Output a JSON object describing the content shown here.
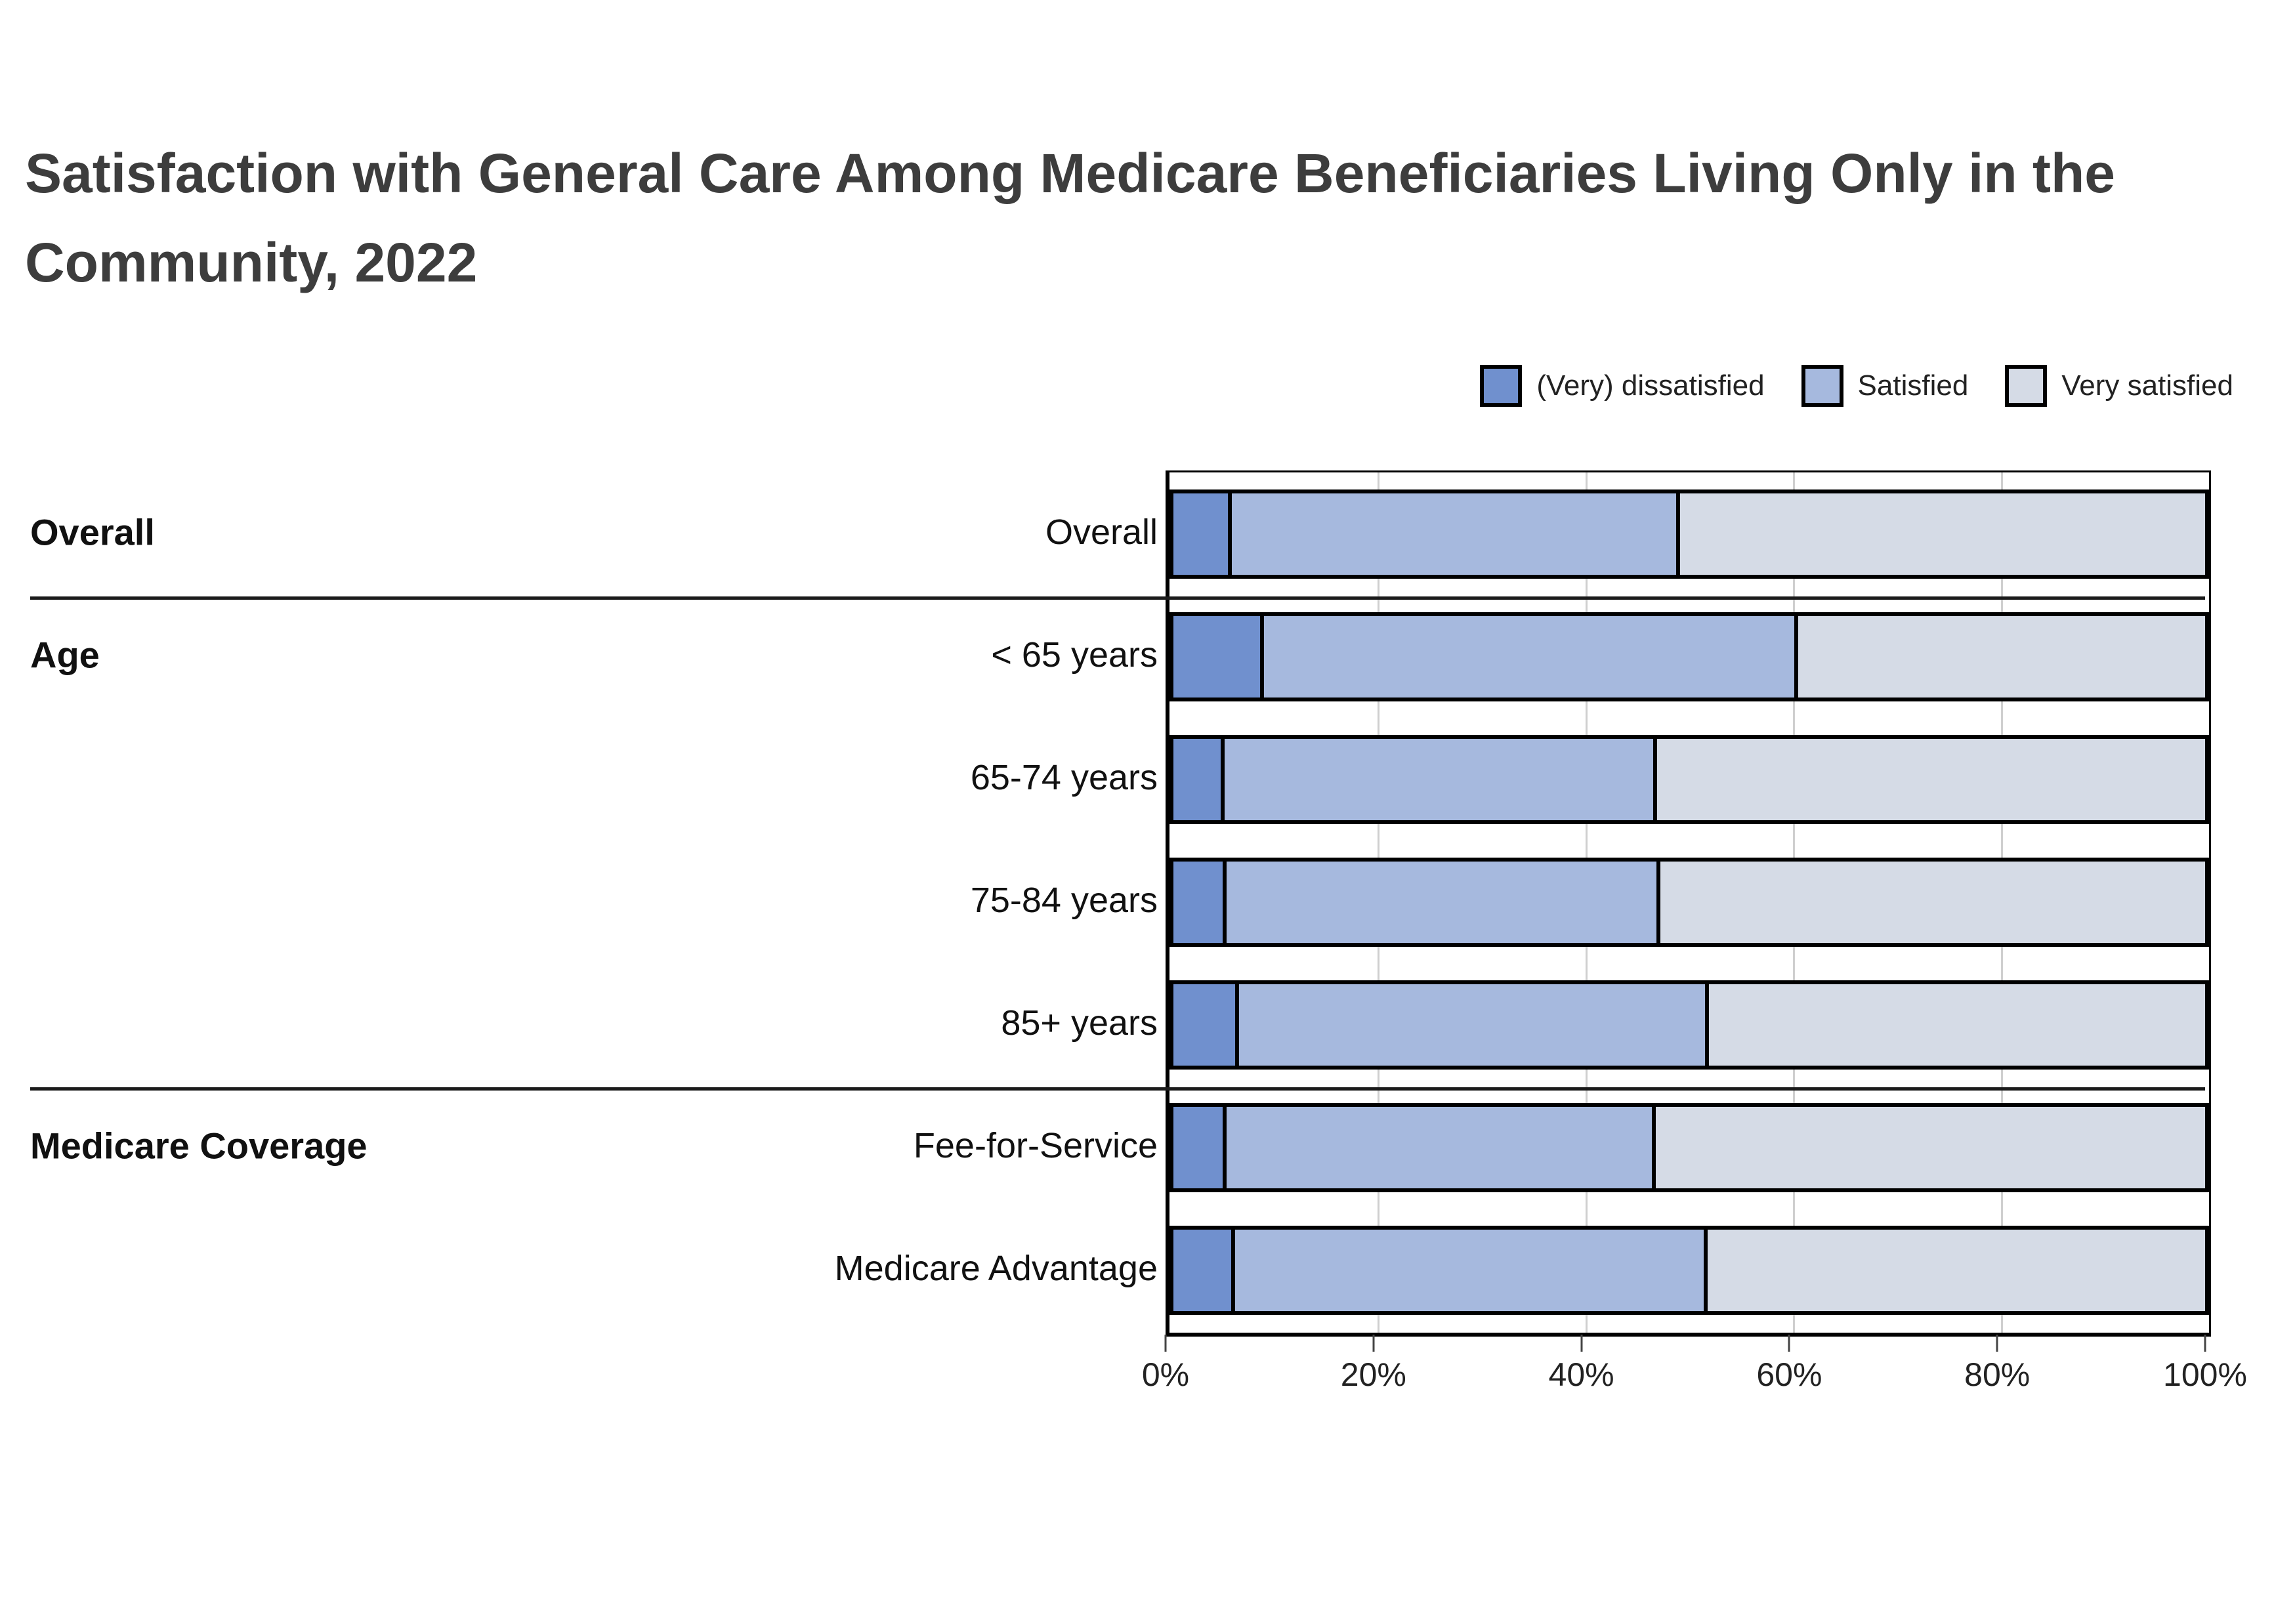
{
  "title": {
    "line1": "Satisfaction with General Care Among Medicare Beneficiaries Living Only in the",
    "line2": "Community, 2022"
  },
  "legend": {
    "items": [
      {
        "label": "(Very) dissatisfied",
        "color": "#7090ce"
      },
      {
        "label": "Satisfied",
        "color": "#a6b9de"
      },
      {
        "label": "Very satisfied",
        "color": "#d5dbe6"
      }
    ]
  },
  "chart_data": {
    "type": "bar",
    "stacked": true,
    "orientation": "horizontal",
    "title": "Satisfaction with General Care Among Medicare Beneficiaries Living Only in the Community, 2022",
    "x_unit": "percent",
    "xlim": [
      0,
      100
    ],
    "xticks": [
      0,
      20,
      40,
      60,
      80,
      100
    ],
    "xtick_labels": [
      "0%",
      "20%",
      "40%",
      "60%",
      "80%",
      "100%"
    ],
    "grid": "vertical gridlines at 20, 40, 60, 80",
    "legend_position": "top-right",
    "series_names": [
      "(Very) dissatisfied",
      "Satisfied",
      "Very satisfied"
    ],
    "groups": [
      {
        "label": "Overall",
        "rows": [
          {
            "label": "Overall",
            "values": [
              5.3,
              43.4,
              51.3
            ]
          }
        ]
      },
      {
        "label": "Age",
        "rows": [
          {
            "label": "< 65 years",
            "values": [
              8.4,
              51.8,
              39.8
            ]
          },
          {
            "label": "65-74 years",
            "values": [
              4.6,
              41.9,
              53.5
            ]
          },
          {
            "label": "75-84 years",
            "values": [
              4.8,
              42.0,
              53.2
            ]
          },
          {
            "label": "85+ years",
            "values": [
              6.0,
              45.5,
              48.5
            ]
          }
        ]
      },
      {
        "label": "Medicare Coverage",
        "rows": [
          {
            "label": "Fee-for-Service",
            "values": [
              4.8,
              41.6,
              53.6
            ]
          },
          {
            "label": "Medicare Advantage",
            "values": [
              5.6,
              45.8,
              48.6
            ]
          }
        ]
      }
    ]
  },
  "colors": {
    "series": [
      "#7090ce",
      "#a6b9de",
      "#d5dbe6"
    ],
    "bar_border": "#000000",
    "gridline": "#cfcfcf",
    "separator": "#1a1a1a",
    "title_text": "#3d3d3d",
    "label_text": "#111111",
    "tick_text": "#222222"
  }
}
